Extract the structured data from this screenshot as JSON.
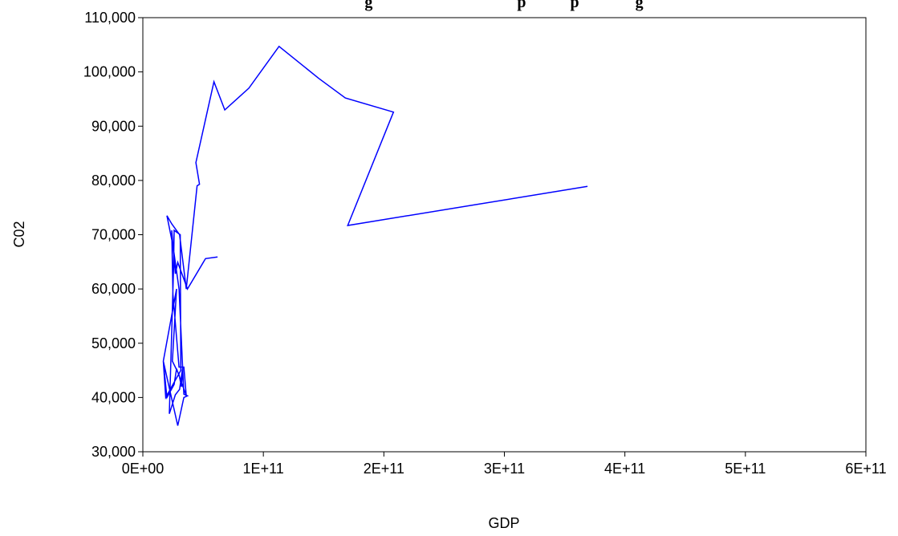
{
  "chart_data": {
    "type": "line",
    "title": "g                                    p           p              g",
    "xlabel": "GDP",
    "ylabel": "C02",
    "xlim": [
      0,
      600000000000
    ],
    "ylim": [
      30000,
      110000
    ],
    "x_ticks": [
      0,
      100000000000,
      200000000000,
      300000000000,
      400000000000,
      500000000000,
      600000000000
    ],
    "x_tick_labels": [
      "0E+00",
      "1E+11",
      "2E+11",
      "3E+11",
      "4E+11",
      "5E+11",
      "6E+11"
    ],
    "y_ticks": [
      30000,
      40000,
      50000,
      60000,
      70000,
      80000,
      90000,
      100000,
      110000
    ],
    "y_tick_labels": [
      "30,000",
      "40,000",
      "50,000",
      "60,000",
      "70,000",
      "80,000",
      "90,000",
      "100,000",
      "110,000"
    ],
    "grid": false,
    "legend": "none",
    "line_color": "#0000ff",
    "series": [
      {
        "x": [
          62000000000,
          52000000000,
          37000000000,
          29000000000,
          27000000000,
          24000000000,
          25000000000,
          30000000000,
          34000000000,
          36000000000,
          28000000000,
          26000000000,
          20000000000,
          17000000000,
          28000000000,
          24500000000,
          30000000000,
          32000000000,
          33000000000,
          30500000000,
          27000000000,
          22000000000,
          25500000000,
          26000000000,
          31000000000,
          31500000000,
          24000000000,
          19000000000,
          17000000000,
          29000000000,
          34000000000,
          37000000000,
          34000000000,
          30000000000,
          25000000000,
          20000000000,
          24000000000,
          30500000000,
          36000000000,
          45000000000,
          47000000000,
          44000000000,
          59000000000,
          68000000000,
          88000000000,
          113000000000,
          146000000000,
          168000000000,
          208000000000,
          170000000000,
          369000000000
        ],
        "y": [
          65900,
          65600,
          60000,
          64900,
          62800,
          70800,
          59000,
          45600,
          45600,
          40300,
          45300,
          42400,
          40000,
          46700,
          60000,
          46700,
          44200,
          42000,
          45500,
          41500,
          40500,
          37000,
          64000,
          70800,
          70000,
          45000,
          42000,
          40000,
          46700,
          34800,
          40000,
          40300,
          40600,
          60000,
          68000,
          73500,
          72000,
          70000,
          60000,
          79000,
          79300,
          83300,
          98200,
          93000,
          97000,
          104700,
          98800,
          95200,
          92600,
          71700,
          78900
        ]
      }
    ]
  }
}
